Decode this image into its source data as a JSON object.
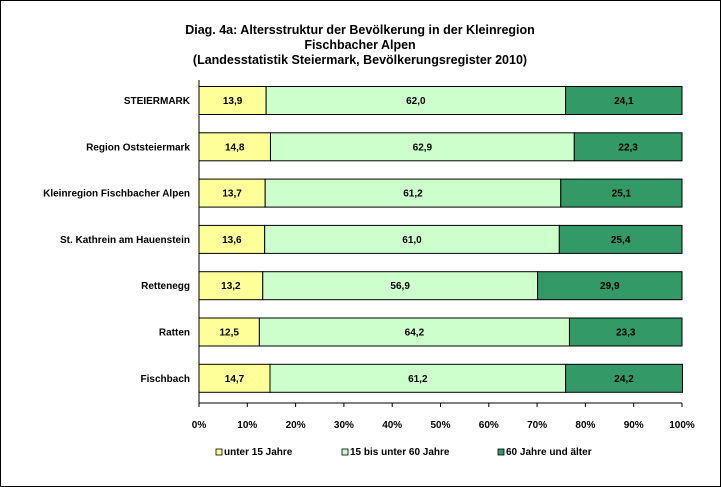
{
  "chart_data": {
    "type": "bar",
    "orientation": "horizontal",
    "stacked": true,
    "title": [
      "Diag. 4a: Altersstruktur  der Bevölkerung  in der Kleinregion",
      "Fischbacher Alpen",
      "(Landesstatistik  Steiermark,  Bevölkerungsregister  2010)"
    ],
    "categories": [
      "STEIERMARK",
      "Region Oststeiermark",
      "Kleinregion Fischbacher Alpen",
      "St. Kathrein am Hauenstein",
      "Rettenegg",
      "Ratten",
      "Fischbach"
    ],
    "series": [
      {
        "name": "unter 15 Jahre",
        "color": "#ffff99",
        "values": [
          13.9,
          14.8,
          13.7,
          13.6,
          13.2,
          12.5,
          14.7
        ],
        "labels": [
          "13,9",
          "14,8",
          "13,7",
          "13,6",
          "13,2",
          "12,5",
          "14,7"
        ]
      },
      {
        "name": "15 bis unter 60 Jahre",
        "color": "#ccffcc",
        "values": [
          62.0,
          62.9,
          61.2,
          61.0,
          56.9,
          64.2,
          61.2
        ],
        "labels": [
          "62,0",
          "62,9",
          "61,2",
          "61,0",
          "56,9",
          "64,2",
          "61,2"
        ]
      },
      {
        "name": "60 Jahre und älter",
        "color": "#339966",
        "values": [
          24.1,
          22.3,
          25.1,
          25.4,
          29.9,
          23.3,
          24.2
        ],
        "labels": [
          "24,1",
          "22,3",
          "25,1",
          "25,4",
          "29,9",
          "23,3",
          "24,2"
        ]
      }
    ],
    "xlim": [
      0,
      100
    ],
    "x_ticks": [
      "0%",
      "10%",
      "20%",
      "30%",
      "40%",
      "50%",
      "60%",
      "70%",
      "80%",
      "90%",
      "100%"
    ],
    "grid": false,
    "legend_position": "bottom"
  }
}
